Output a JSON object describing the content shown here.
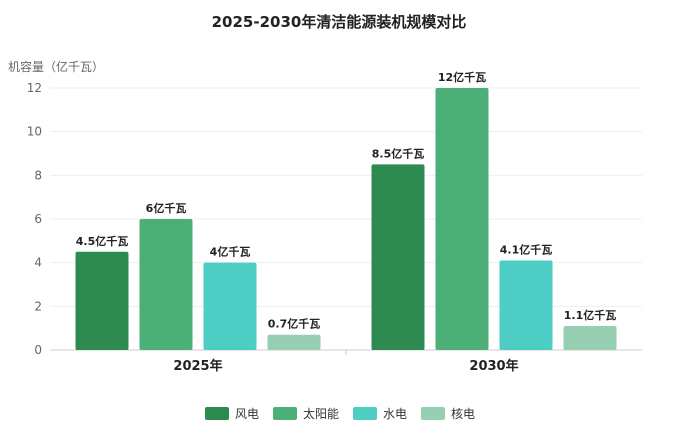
{
  "chart_data": {
    "type": "bar",
    "title": "2025-2030年清洁能源装机规模对比",
    "ylabel": "机容量（亿千瓦）",
    "ylim": [
      0,
      12
    ],
    "yticks": [
      0,
      2,
      4,
      6,
      8,
      10,
      12
    ],
    "categories": [
      "2025年",
      "2030年"
    ],
    "label_suffix": "亿千瓦",
    "grid": true,
    "legend_position": "bottom",
    "series": [
      {
        "name": "风电",
        "color": "#2d8a50",
        "values": [
          4.5,
          8.5
        ]
      },
      {
        "name": "太阳能",
        "color": "#4caf78",
        "values": [
          6,
          12
        ]
      },
      {
        "name": "水电",
        "color": "#4ecdc4",
        "values": [
          4,
          4.1
        ]
      },
      {
        "name": "核电",
        "color": "#96cfb2",
        "values": [
          0.7,
          1.1
        ]
      }
    ]
  }
}
